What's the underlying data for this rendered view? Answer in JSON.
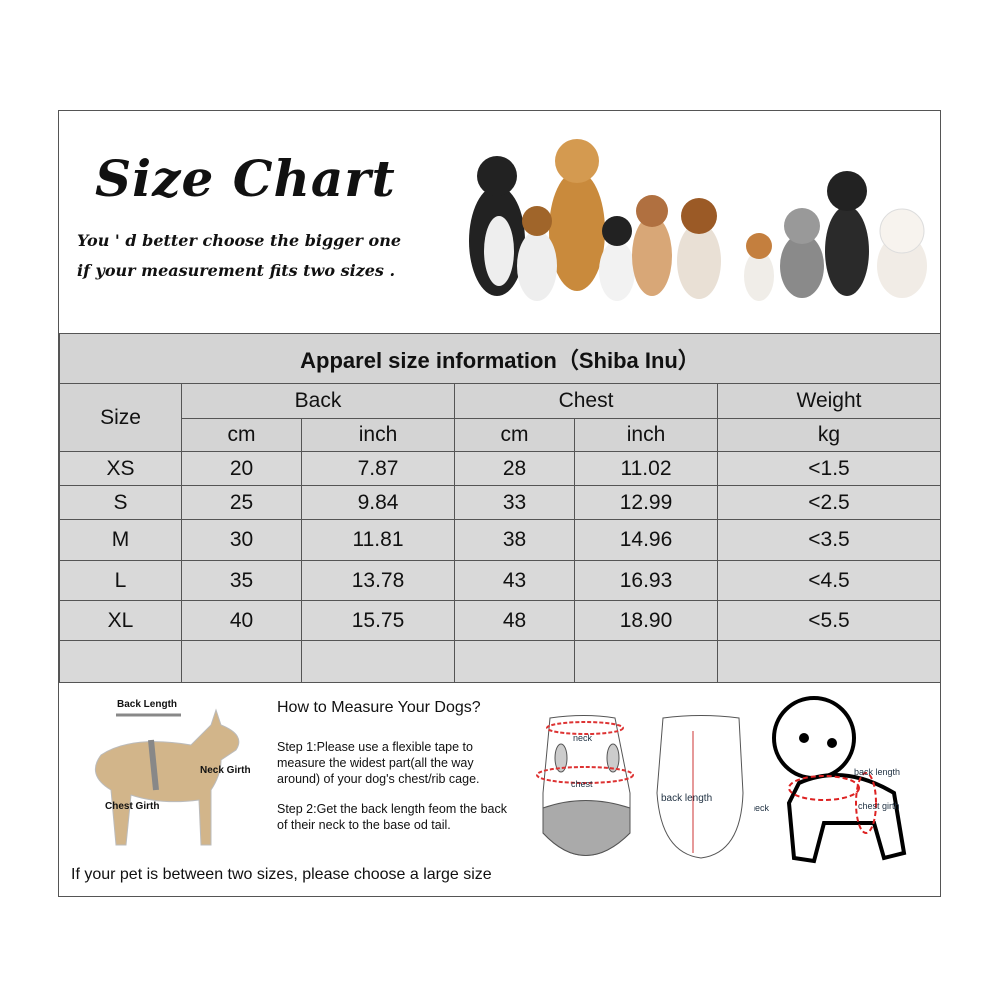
{
  "banner": {
    "title": "Size Chart",
    "subtitle_line1": "You ' d better choose the bigger one",
    "subtitle_line2": "if your measurement fits two sizes ."
  },
  "table": {
    "title": "Apparel  size  information（Shiba Inu）",
    "headers": {
      "size": "Size",
      "back": "Back",
      "chest": "Chest",
      "weight": "Weight",
      "cm": "cm",
      "inch": "inch",
      "kg": "kg"
    },
    "rows": [
      {
        "size": "XS",
        "back_cm": "20",
        "back_inch": "7.87",
        "chest_cm": "28",
        "chest_inch": "11.02",
        "weight": "<1.5"
      },
      {
        "size": "S",
        "back_cm": "25",
        "back_inch": "9.84",
        "chest_cm": "33",
        "chest_inch": "12.99",
        "weight": "<2.5"
      },
      {
        "size": "M",
        "back_cm": "30",
        "back_inch": "11.81",
        "chest_cm": "38",
        "chest_inch": "14.96",
        "weight": "<3.5"
      },
      {
        "size": "L",
        "back_cm": "35",
        "back_inch": "13.78",
        "chest_cm": "43",
        "chest_inch": "16.93",
        "weight": "<4.5"
      },
      {
        "size": "XL",
        "back_cm": "40",
        "back_inch": "15.75",
        "chest_cm": "48",
        "chest_inch": "18.90",
        "weight": "<5.5"
      }
    ]
  },
  "measure": {
    "heading": "How to Measure Your Dogs?",
    "step1": "Step 1:Please use a flexible tape to measure the widest part(all the way around) of your dog's chest/rib cage.",
    "step2": "Step 2:Get the back length feom the back of their neck to the base od tail.",
    "note": "If your pet is between two sizes, please choose a large size",
    "dog_labels": {
      "back_length": "Back Length",
      "neck_girth": "Neck Girth",
      "chest_girth": "Chest Girth"
    },
    "garment_labels": {
      "neck": "neck",
      "chest": "chest",
      "back_length": "back length"
    },
    "cartoon_labels": {
      "back_length": "back length",
      "neck": "neck",
      "chest_girth": "chest girth"
    }
  }
}
